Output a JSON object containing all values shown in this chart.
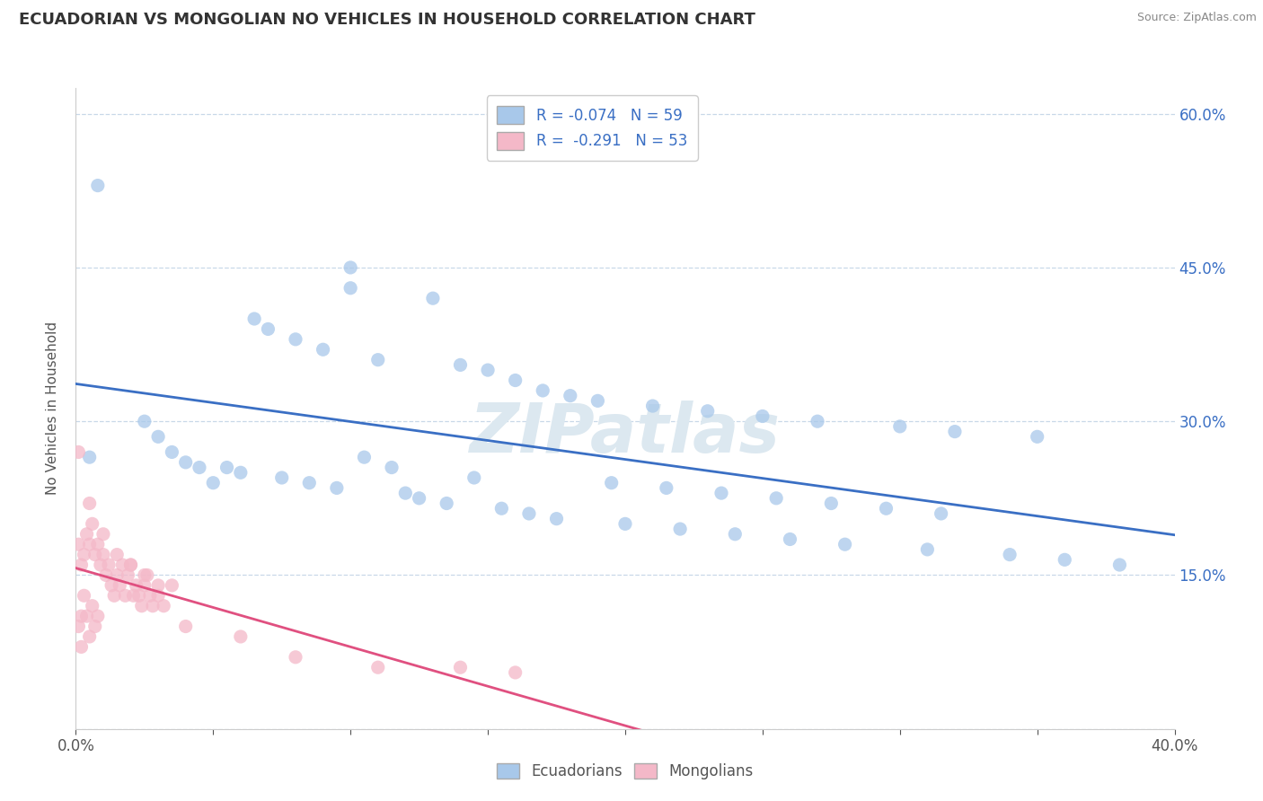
{
  "title": "ECUADORIAN VS MONGOLIAN NO VEHICLES IN HOUSEHOLD CORRELATION CHART",
  "source": "Source: ZipAtlas.com",
  "ylabel": "No Vehicles in Household",
  "xlim": [
    0,
    0.4
  ],
  "ylim": [
    0,
    0.625
  ],
  "xticks": [
    0.0,
    0.05,
    0.1,
    0.15,
    0.2,
    0.25,
    0.3,
    0.35,
    0.4
  ],
  "ytick_positions": [
    0.0,
    0.15,
    0.3,
    0.45,
    0.6
  ],
  "ytick_labels_right": [
    "",
    "15.0%",
    "30.0%",
    "45.0%",
    "60.0%"
  ],
  "ecuadorian_color": "#a8c8ea",
  "mongolian_color": "#f4b8c8",
  "trend_ecuadorian_color": "#3a6fc4",
  "trend_mongolian_color": "#e05080",
  "watermark": "ZIPatlas",
  "watermark_color": "#dce8f0",
  "legend_label_ecu": "R = -0.074   N = 59",
  "legend_label_mon": "R =  -0.291   N = 53",
  "ecuadorians_label": "Ecuadorians",
  "mongolians_label": "Mongolians",
  "background_color": "#ffffff",
  "grid_color": "#c8d8e8",
  "ecuadorian_x": [
    0.008,
    0.1,
    0.1,
    0.13,
    0.065,
    0.07,
    0.08,
    0.09,
    0.11,
    0.14,
    0.15,
    0.16,
    0.17,
    0.18,
    0.19,
    0.21,
    0.23,
    0.25,
    0.27,
    0.3,
    0.32,
    0.35,
    0.005,
    0.04,
    0.055,
    0.06,
    0.075,
    0.085,
    0.095,
    0.12,
    0.125,
    0.135,
    0.155,
    0.165,
    0.175,
    0.2,
    0.22,
    0.24,
    0.26,
    0.28,
    0.31,
    0.34,
    0.36,
    0.38,
    0.025,
    0.03,
    0.035,
    0.045,
    0.05,
    0.105,
    0.115,
    0.145,
    0.195,
    0.215,
    0.235,
    0.255,
    0.275,
    0.295,
    0.315
  ],
  "ecuadorian_y": [
    0.53,
    0.45,
    0.43,
    0.42,
    0.4,
    0.39,
    0.38,
    0.37,
    0.36,
    0.355,
    0.35,
    0.34,
    0.33,
    0.325,
    0.32,
    0.315,
    0.31,
    0.305,
    0.3,
    0.295,
    0.29,
    0.285,
    0.265,
    0.26,
    0.255,
    0.25,
    0.245,
    0.24,
    0.235,
    0.23,
    0.225,
    0.22,
    0.215,
    0.21,
    0.205,
    0.2,
    0.195,
    0.19,
    0.185,
    0.18,
    0.175,
    0.17,
    0.165,
    0.16,
    0.3,
    0.285,
    0.27,
    0.255,
    0.24,
    0.265,
    0.255,
    0.245,
    0.24,
    0.235,
    0.23,
    0.225,
    0.22,
    0.215,
    0.21
  ],
  "mongolian_x": [
    0.001,
    0.001,
    0.001,
    0.002,
    0.002,
    0.002,
    0.003,
    0.003,
    0.004,
    0.004,
    0.005,
    0.005,
    0.006,
    0.006,
    0.007,
    0.007,
    0.008,
    0.008,
    0.009,
    0.01,
    0.011,
    0.012,
    0.013,
    0.014,
    0.015,
    0.016,
    0.017,
    0.018,
    0.019,
    0.02,
    0.021,
    0.022,
    0.023,
    0.024,
    0.025,
    0.026,
    0.027,
    0.028,
    0.03,
    0.032,
    0.035,
    0.04,
    0.06,
    0.08,
    0.11,
    0.14,
    0.16,
    0.005,
    0.01,
    0.015,
    0.02,
    0.025,
    0.03
  ],
  "mongolian_y": [
    0.27,
    0.18,
    0.1,
    0.16,
    0.11,
    0.08,
    0.17,
    0.13,
    0.19,
    0.11,
    0.18,
    0.09,
    0.2,
    0.12,
    0.17,
    0.1,
    0.18,
    0.11,
    0.16,
    0.17,
    0.15,
    0.16,
    0.14,
    0.13,
    0.15,
    0.14,
    0.16,
    0.13,
    0.15,
    0.16,
    0.13,
    0.14,
    0.13,
    0.12,
    0.14,
    0.15,
    0.13,
    0.12,
    0.13,
    0.12,
    0.14,
    0.1,
    0.09,
    0.07,
    0.06,
    0.06,
    0.055,
    0.22,
    0.19,
    0.17,
    0.16,
    0.15,
    0.14
  ]
}
